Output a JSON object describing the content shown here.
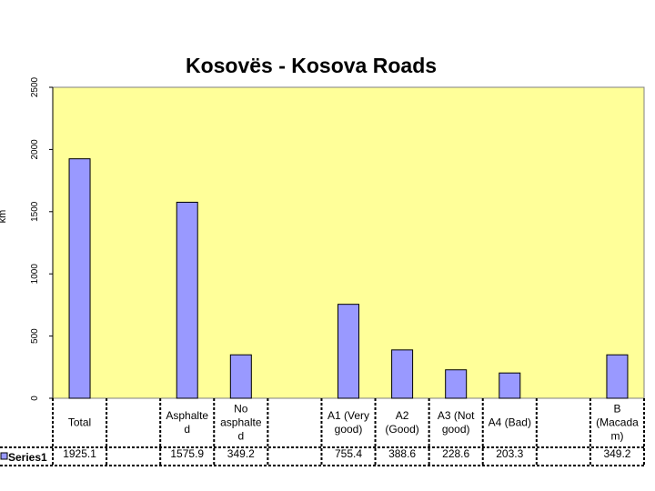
{
  "chart_data": {
    "type": "bar",
    "title": "Kosovës - Kosova Roads",
    "ylabel": "km",
    "xlabel": "",
    "ylim": [
      0,
      2500
    ],
    "yticks": [
      0,
      500,
      1000,
      1500,
      2000,
      2500
    ],
    "grid": false,
    "legend": "data-table",
    "plot_background": "#ffff99",
    "bar_color": "#9999ff",
    "categories": [
      {
        "lines": [
          "Total"
        ]
      },
      {
        "lines": [
          ""
        ]
      },
      {
        "lines": [
          "Asphalte",
          "d"
        ]
      },
      {
        "lines": [
          "No",
          "asphalte",
          "d"
        ]
      },
      {
        "lines": [
          ""
        ]
      },
      {
        "lines": [
          "A1 (Very",
          "good)"
        ]
      },
      {
        "lines": [
          "A2",
          "(Good)"
        ]
      },
      {
        "lines": [
          "A3 (Not",
          "good)"
        ]
      },
      {
        "lines": [
          "A4 (Bad)"
        ]
      },
      {
        "lines": [
          ""
        ]
      },
      {
        "lines": [
          "B",
          "(Macada",
          "m)"
        ]
      }
    ],
    "series": [
      {
        "name": "Series1",
        "values": [
          1925.1,
          null,
          1575.9,
          349.2,
          null,
          755.4,
          388.6,
          228.6,
          203.3,
          null,
          349.2
        ],
        "labels": [
          "1925.1",
          "",
          "1575.9",
          "349.2",
          "",
          "755.4",
          "388.6",
          "228.6",
          "203.3",
          "",
          "349.2"
        ]
      }
    ]
  }
}
